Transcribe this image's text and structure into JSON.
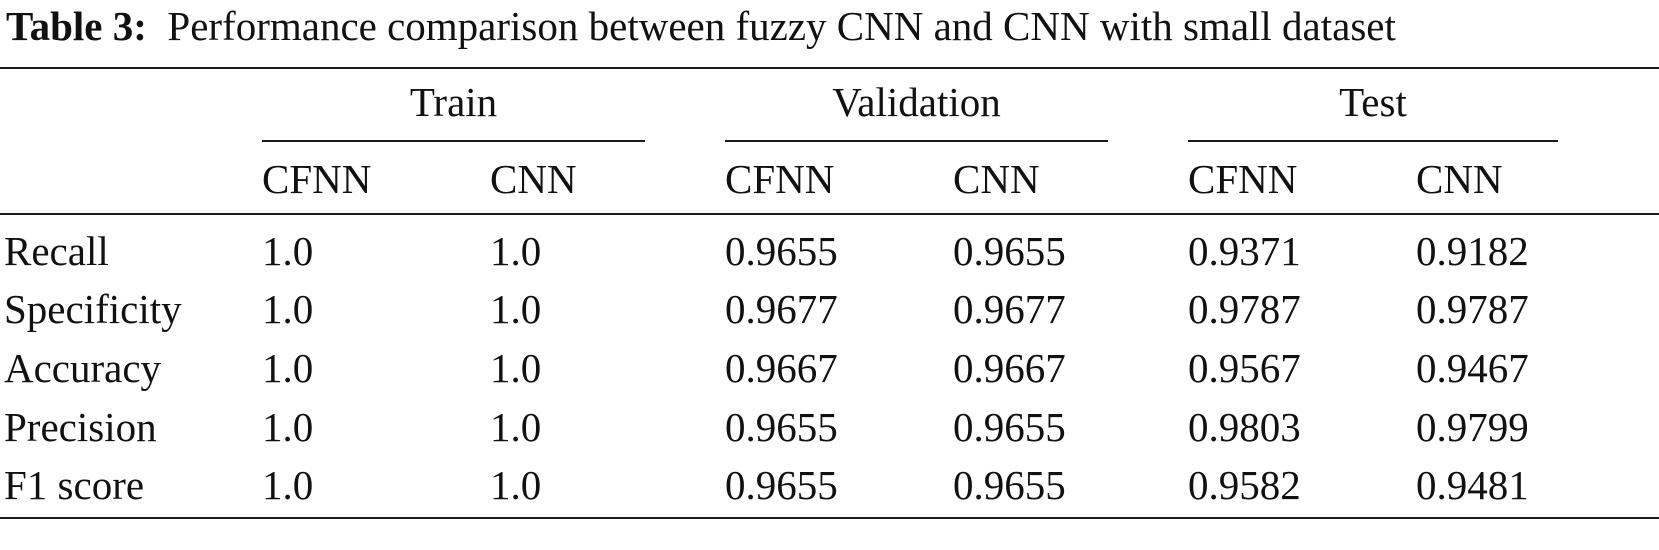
{
  "caption": {
    "label": "Table 3:",
    "text": "Performance comparison between fuzzy CNN and CNN with small dataset"
  },
  "groups": [
    "Train",
    "Validation",
    "Test"
  ],
  "subheaders": [
    "CFNN",
    "CNN",
    "CFNN",
    "CNN",
    "CFNN",
    "CNN"
  ],
  "rows": [
    {
      "label": "Recall",
      "values": [
        "1.0",
        "1.0",
        "0.9655",
        "0.9655",
        "0.9371",
        "0.9182"
      ]
    },
    {
      "label": "Specificity",
      "values": [
        "1.0",
        "1.0",
        "0.9677",
        "0.9677",
        "0.9787",
        "0.9787"
      ]
    },
    {
      "label": "Accuracy",
      "values": [
        "1.0",
        "1.0",
        "0.9667",
        "0.9667",
        "0.9567",
        "0.9467"
      ]
    },
    {
      "label": "Precision",
      "values": [
        "1.0",
        "1.0",
        "0.9655",
        "0.9655",
        "0.9803",
        "0.9799"
      ]
    },
    {
      "label": "F1 score",
      "values": [
        "1.0",
        "1.0",
        "0.9655",
        "0.9655",
        "0.9582",
        "0.9481"
      ]
    }
  ]
}
